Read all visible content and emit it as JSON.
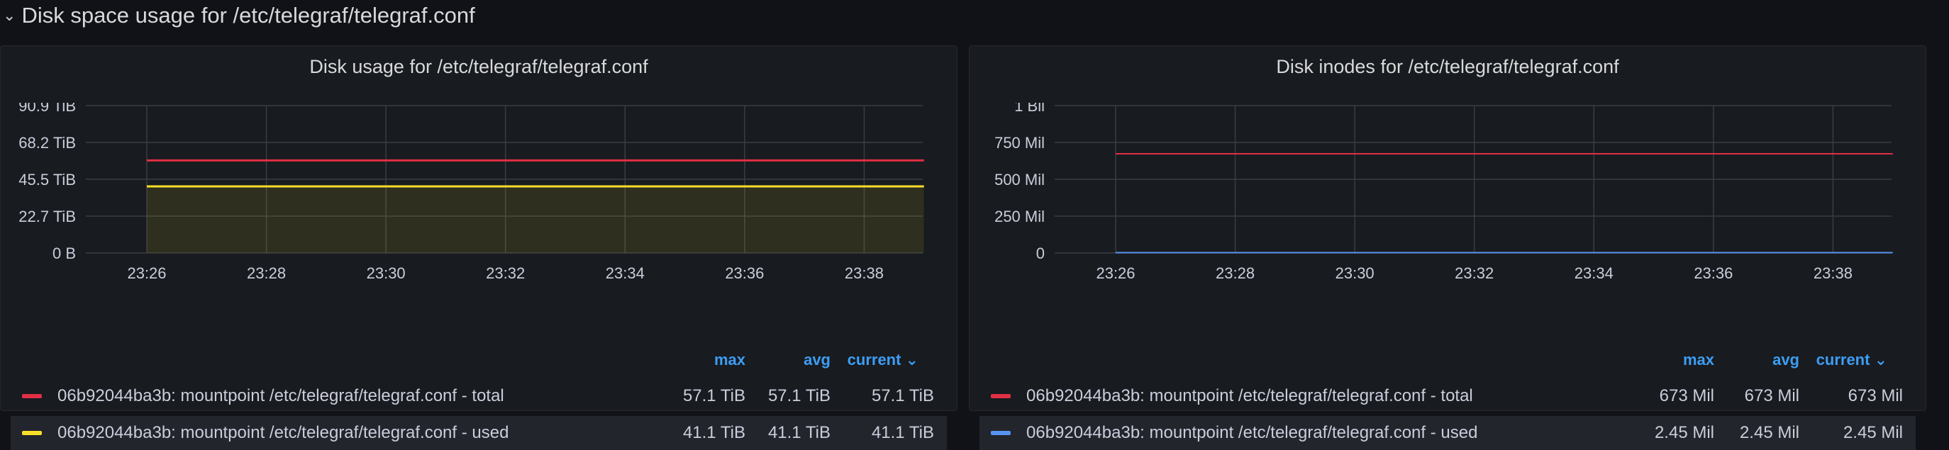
{
  "row": {
    "chevron": "⌄",
    "title": "Disk space usage for /etc/telegraf/telegraf.conf"
  },
  "colors": {
    "total": "#e02f44",
    "used_yellow": "#fade2a",
    "used_blue": "#5794f2",
    "accent": "#3d9df3"
  },
  "panels": [
    {
      "title": "Disk usage for /etc/telegraf/telegraf.conf",
      "legend": {
        "max": "max",
        "avg": "avg",
        "current": "current",
        "rows": [
          {
            "name": "06b92044ba3b: mountpoint /etc/telegraf/telegraf.conf - total",
            "max": "57.1 TiB",
            "avg": "57.1 TiB",
            "current": "57.1 TiB",
            "color": "#e02f44"
          },
          {
            "name": "06b92044ba3b: mountpoint /etc/telegraf/telegraf.conf - used",
            "max": "41.1 TiB",
            "avg": "41.1 TiB",
            "current": "41.1 TiB",
            "color": "#fade2a"
          }
        ]
      }
    },
    {
      "title": "Disk inodes for /etc/telegraf/telegraf.conf",
      "legend": {
        "max": "max",
        "avg": "avg",
        "current": "current",
        "rows": [
          {
            "name": "06b92044ba3b: mountpoint /etc/telegraf/telegraf.conf - total",
            "max": "673 Mil",
            "avg": "673 Mil",
            "current": "673 Mil",
            "color": "#e02f44"
          },
          {
            "name": "06b92044ba3b: mountpoint /etc/telegraf/telegraf.conf - used",
            "max": "2.45 Mil",
            "avg": "2.45 Mil",
            "current": "2.45 Mil",
            "color": "#5794f2"
          }
        ]
      }
    }
  ],
  "chart_data": [
    {
      "type": "area",
      "title": "Disk usage for /etc/telegraf/telegraf.conf",
      "x": [
        "23:26",
        "23:28",
        "23:30",
        "23:32",
        "23:34",
        "23:36",
        "23:38"
      ],
      "x_range": [
        0,
        14
      ],
      "x_ticks": [
        0,
        2,
        4,
        6,
        8,
        10,
        12
      ],
      "y_ticks": [
        0,
        22.7,
        45.5,
        68.2,
        90.9
      ],
      "y_tick_labels": [
        "0 B",
        "22.7 TiB",
        "45.5 TiB",
        "68.2 TiB",
        "90.9 TiB"
      ],
      "ylim": [
        0,
        90.9
      ],
      "y_unit": "TiB",
      "series": [
        {
          "name": "06b92044ba3b: mountpoint /etc/telegraf/telegraf.conf - total",
          "x": [
            0,
            13
          ],
          "values": [
            57.1,
            57.1
          ],
          "color": "#e02f44",
          "fill": false
        },
        {
          "name": "06b92044ba3b: mountpoint /etc/telegraf/telegraf.conf - used",
          "x": [
            0,
            13
          ],
          "values": [
            41.1,
            41.1
          ],
          "color": "#fade2a",
          "fill": true
        }
      ]
    },
    {
      "type": "line",
      "title": "Disk inodes for /etc/telegraf/telegraf.conf",
      "x": [
        "23:26",
        "23:28",
        "23:30",
        "23:32",
        "23:34",
        "23:36",
        "23:38"
      ],
      "x_range": [
        0,
        14
      ],
      "x_ticks": [
        0,
        2,
        4,
        6,
        8,
        10,
        12
      ],
      "y_ticks": [
        0,
        250,
        500,
        750,
        1000
      ],
      "y_tick_labels": [
        "0",
        "250 Mil",
        "500 Mil",
        "750 Mil",
        "1 Bil"
      ],
      "ylim": [
        0,
        1000
      ],
      "y_unit": "Mil",
      "series": [
        {
          "name": "06b92044ba3b: mountpoint /etc/telegraf/telegraf.conf - total",
          "x": [
            0,
            13
          ],
          "values": [
            673,
            673
          ],
          "color": "#e02f44",
          "fill": false
        },
        {
          "name": "06b92044ba3b: mountpoint /etc/telegraf/telegraf.conf - used",
          "x": [
            0,
            13
          ],
          "values": [
            2.45,
            2.45
          ],
          "color": "#5794f2",
          "fill": false
        }
      ]
    }
  ]
}
